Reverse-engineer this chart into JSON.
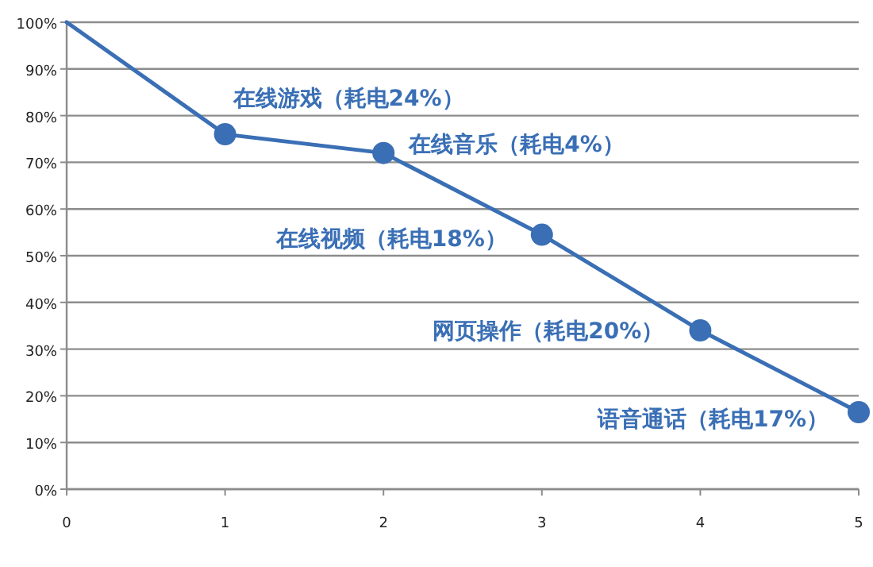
{
  "chart_data": {
    "type": "line",
    "series": [
      {
        "color": "#3a6fb5",
        "marker": "none",
        "x": [
          0,
          1,
          2,
          3,
          4,
          5
        ],
        "values": [
          100,
          76,
          72,
          54.5,
          34,
          16.5
        ]
      },
      {
        "type": "scatter",
        "color": "#3a6fb5",
        "marker": "circle",
        "x": [
          1,
          2,
          3,
          4,
          5
        ],
        "values": [
          76,
          72,
          54.5,
          34,
          16.5
        ]
      }
    ],
    "annotations": [
      {
        "text": "在线游戏（耗电24%）",
        "x": 1,
        "y": 76
      },
      {
        "text": "在线音乐（耗电4%）",
        "x": 2,
        "y": 72
      },
      {
        "text": "在线视频（耗电18%）",
        "x": 3,
        "y": 54.5
      },
      {
        "text": "网页操作（耗电20%）",
        "x": 4,
        "y": 34
      },
      {
        "text": "语音通话（耗电17%）",
        "x": 5,
        "y": 16.5
      }
    ],
    "xlim": [
      0,
      5
    ],
    "xticks": [
      0,
      1,
      2,
      3,
      4,
      5
    ],
    "ylim": [
      0,
      100
    ],
    "yticks": [
      {
        "value": 0,
        "label": "0%"
      },
      {
        "value": 10,
        "label": "10%"
      },
      {
        "value": 20,
        "label": "20%"
      },
      {
        "value": 30,
        "label": "30%"
      },
      {
        "value": 40,
        "label": "40%"
      },
      {
        "value": 50,
        "label": "50%"
      },
      {
        "value": 60,
        "label": "60%"
      },
      {
        "value": 70,
        "label": "70%"
      },
      {
        "value": 80,
        "label": "80%"
      },
      {
        "value": 90,
        "label": "90%"
      },
      {
        "value": 100,
        "label": "100%"
      }
    ],
    "grid": "y"
  }
}
